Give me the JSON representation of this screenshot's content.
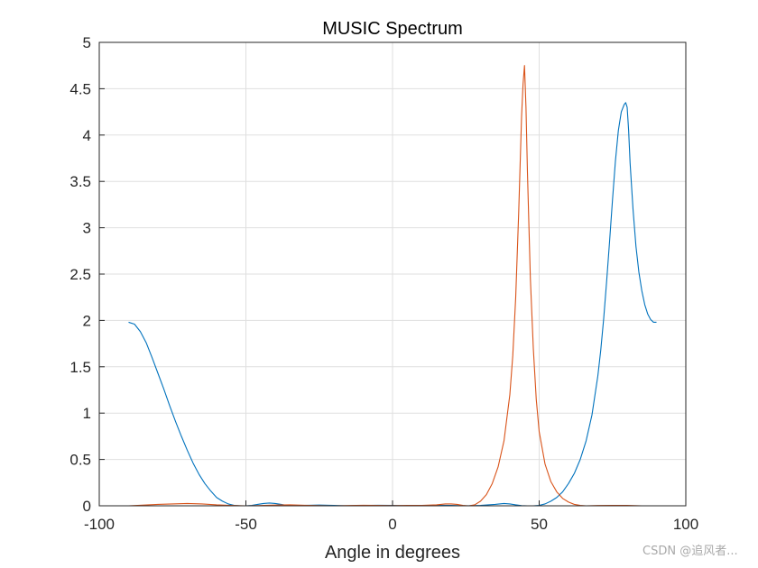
{
  "chart_data": {
    "type": "line",
    "title": "MUSIC Spectrum",
    "xlabel": "Angle in degrees",
    "ylabel": "",
    "xlim": [
      -100,
      100
    ],
    "ylim": [
      0,
      5
    ],
    "xticks": [
      "-100",
      "-50",
      "0",
      "50",
      "100"
    ],
    "yticks": [
      "0",
      "0.5",
      "1",
      "1.5",
      "2",
      "2.5",
      "3",
      "3.5",
      "4",
      "4.5",
      "5"
    ],
    "grid": true,
    "series": [
      {
        "color": "#0072BD",
        "x": [
          -90,
          -88,
          -86,
          -84,
          -82,
          -80,
          -78,
          -76,
          -74,
          -72,
          -70,
          -68,
          -66,
          -64,
          -62,
          -60,
          -58,
          -56,
          -54,
          -52,
          -50,
          -48,
          -46,
          -44,
          -42,
          -40,
          -38,
          -36,
          -34,
          -32,
          -30,
          -25,
          -20,
          -15,
          -10,
          -5,
          0,
          5,
          10,
          15,
          20,
          25,
          30,
          35,
          38,
          40,
          42,
          44,
          46,
          48,
          50,
          52,
          54,
          56,
          58,
          60,
          62,
          64,
          66,
          68,
          70,
          71,
          72,
          73,
          74,
          75,
          76,
          77,
          78,
          79,
          79.5,
          80,
          80.5,
          81,
          82,
          83,
          84,
          85,
          86,
          87,
          88,
          89,
          90
        ],
        "y": [
          1.98,
          1.96,
          1.88,
          1.76,
          1.6,
          1.43,
          1.26,
          1.08,
          0.91,
          0.75,
          0.6,
          0.46,
          0.34,
          0.24,
          0.16,
          0.09,
          0.05,
          0.02,
          0.005,
          0.0,
          0.0,
          0.005,
          0.015,
          0.025,
          0.03,
          0.025,
          0.015,
          0.005,
          0.0,
          0.002,
          0.005,
          0.008,
          0.004,
          0.0,
          0.003,
          0.006,
          0.004,
          0.0,
          0.003,
          0.006,
          0.004,
          0.0,
          0.005,
          0.015,
          0.025,
          0.02,
          0.01,
          0.002,
          0.0,
          0.0,
          0.005,
          0.02,
          0.05,
          0.09,
          0.15,
          0.24,
          0.35,
          0.5,
          0.7,
          0.98,
          1.4,
          1.68,
          2.02,
          2.42,
          2.85,
          3.3,
          3.72,
          4.05,
          4.25,
          4.33,
          4.35,
          4.3,
          4.05,
          3.7,
          3.2,
          2.8,
          2.52,
          2.32,
          2.17,
          2.07,
          2.01,
          1.98,
          1.98
        ]
      },
      {
        "color": "#D95319",
        "x": [
          -90,
          -80,
          -75,
          -70,
          -65,
          -60,
          -55,
          -50,
          -45,
          -40,
          -35,
          -30,
          -25,
          -20,
          -15,
          -10,
          -5,
          0,
          5,
          10,
          15,
          18,
          20,
          22,
          24,
          26,
          28,
          30,
          32,
          34,
          36,
          38,
          40,
          41,
          42,
          43,
          44,
          44.5,
          45,
          45.5,
          46,
          47,
          48,
          49,
          50,
          52,
          54,
          56,
          58,
          60,
          62,
          64,
          66,
          70,
          75,
          80,
          85,
          90
        ],
        "y": [
          0.0,
          0.015,
          0.02,
          0.025,
          0.02,
          0.01,
          0.004,
          0.0,
          0.003,
          0.008,
          0.01,
          0.006,
          0.002,
          0.0,
          0.003,
          0.006,
          0.005,
          0.002,
          0.004,
          0.005,
          0.01,
          0.02,
          0.02,
          0.015,
          0.005,
          0.0,
          0.01,
          0.05,
          0.12,
          0.24,
          0.42,
          0.7,
          1.2,
          1.62,
          2.25,
          3.15,
          4.2,
          4.55,
          4.75,
          4.3,
          3.6,
          2.45,
          1.7,
          1.15,
          0.8,
          0.45,
          0.26,
          0.15,
          0.08,
          0.04,
          0.015,
          0.005,
          0.0,
          0.003,
          0.005,
          0.004,
          0.0,
          0.0
        ]
      }
    ]
  },
  "watermark": "CSDN @追风者..."
}
